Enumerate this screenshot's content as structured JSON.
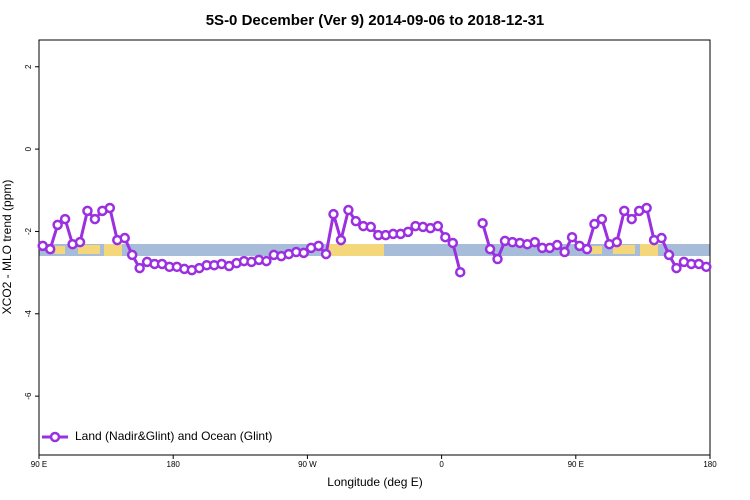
{
  "chart_data": {
    "type": "line",
    "title": "5S-0 December (Ver 9)   2014-09-06 to 2018-12-31",
    "x_label": "Longitude (deg E)",
    "y_label": "XCO2 - MLO trend (ppm)",
    "x": [
      92.5,
      97.5,
      102.5,
      107.5,
      112.5,
      117.5,
      122.5,
      127.5,
      132.5,
      137.5,
      142.5,
      147.5,
      152.5,
      157.5,
      162.5,
      167.5,
      172.5,
      177.5,
      182.5,
      187.5,
      192.5,
      197.5,
      202.5,
      207.5,
      212.5,
      217.5,
      222.5,
      227.5,
      232.5,
      237.5,
      242.5,
      247.5,
      252.5,
      257.5,
      262.5,
      267.5,
      272.5,
      277.5,
      282.5,
      287.5,
      292.5,
      297.5,
      302.5,
      307.5,
      312.5,
      317.5,
      322.5,
      327.5,
      332.5,
      337.5,
      342.5,
      347.5,
      352.5,
      357.5,
      362.5,
      367.5,
      372.5,
      377.5,
      382.5,
      387.5,
      392.5,
      397.5,
      402.5,
      407.5,
      412.5,
      417.5,
      422.5,
      427.5,
      432.5,
      437.5,
      442.5,
      447.5,
      452.5,
      457.5,
      462.5,
      467.5,
      472.5,
      477.5,
      482.5,
      487.5,
      492.5,
      497.5,
      502.5,
      507.5,
      512.5,
      517.5,
      522.5,
      527.5,
      532.5,
      537.5
    ],
    "series": [
      {
        "name": "Land (Nadir&Glint) and Ocean (Glint)",
        "color": "#9b30e0",
        "values": [
          -2.35,
          -2.43,
          -1.84,
          -1.7,
          -2.31,
          -2.26,
          -1.5,
          -1.7,
          -1.5,
          -1.43,
          -2.21,
          -2.16,
          -2.57,
          -2.89,
          -2.74,
          -2.79,
          -2.79,
          -2.86,
          -2.86,
          -2.91,
          -2.94,
          -2.89,
          -2.82,
          -2.82,
          -2.79,
          -2.84,
          -2.77,
          -2.72,
          -2.74,
          -2.69,
          -2.72,
          -2.57,
          -2.6,
          -2.55,
          -2.5,
          -2.52,
          -2.4,
          -2.35,
          -2.55,
          -1.58,
          -2.21,
          -1.48,
          -1.75,
          -1.87,
          -1.89,
          -2.09,
          -2.09,
          -2.06,
          -2.06,
          -2.01,
          -1.87,
          -1.89,
          -1.92,
          -1.87,
          -2.14,
          -2.28,
          -2.99,
          null,
          null,
          -1.8,
          -2.43,
          -2.67,
          -2.23,
          -2.26,
          -2.28,
          -2.31,
          -2.26,
          -2.4,
          -2.4,
          -2.33,
          -2.5,
          -2.14,
          -2.35,
          -2.43,
          -1.82,
          -1.7,
          -2.31,
          -2.26,
          -1.5,
          -1.7,
          -1.5,
          -1.43,
          -2.21,
          -2.16,
          -2.57,
          -2.89,
          -2.74,
          -2.79,
          -2.79,
          -2.86
        ]
      }
    ],
    "xlim": [
      90,
      540
    ],
    "xticks": [
      {
        "value": 90,
        "label": "90 E"
      },
      180,
      {
        "value": 270,
        "label": "90 W"
      },
      {
        "value": 360,
        "label": "0"
      },
      {
        "value": 450,
        "label": "90 E"
      },
      {
        "value": 540,
        "label": "180"
      }
    ],
    "ylim": [
      -7.43,
      2.65
    ],
    "yticks": [
      2,
      0,
      -2,
      -4,
      -6
    ],
    "legend": "bottom-left"
  }
}
